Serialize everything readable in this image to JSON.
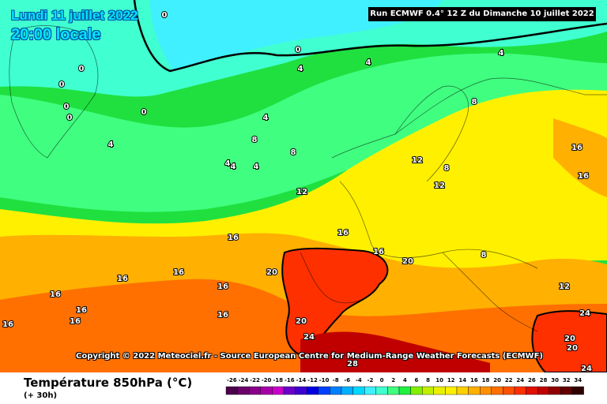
{
  "header": {
    "date_line": "Lundi 11 juillet 2022",
    "time_line": "20:00 locale",
    "run_info": "Run ECMWF 0.4° 12 Z du Dimanche 10 juillet 2022"
  },
  "credit": "Copyright © 2022 Meteociel.fr - Source European Centre for Medium-Range Weather Forecasts (ECMWF)",
  "footer": {
    "parameter": "Température 850hPa (°C)",
    "lead_time": "(+ 30h)"
  },
  "color_scale": {
    "labels": [
      "-26",
      "-24",
      "-22",
      "-20",
      "-18",
      "-16",
      "-14",
      "-12",
      "-10",
      "-8",
      "-6",
      "-4",
      "-2",
      "0",
      "2",
      "4",
      "6",
      "8",
      "10",
      "12",
      "14",
      "16",
      "18",
      "20",
      "22",
      "24",
      "26",
      "28",
      "30",
      "32",
      "34"
    ],
    "colors": [
      "#4b004b",
      "#6a006a",
      "#8a008a",
      "#a800a8",
      "#c800c8",
      "#6a00c8",
      "#3c00d0",
      "#0000e0",
      "#0040ff",
      "#0080ff",
      "#00b0ff",
      "#00d8ff",
      "#40f0ff",
      "#40ffd0",
      "#40ff80",
      "#20f040",
      "#80f000",
      "#c0f000",
      "#e8f000",
      "#fff000",
      "#ffd000",
      "#ffb000",
      "#ff9000",
      "#ff7000",
      "#ff5000",
      "#ff3000",
      "#e01000",
      "#c00000",
      "#900000",
      "#600000",
      "#300000"
    ]
  },
  "isotherm_labels": [
    {
      "text": "0",
      "kind": "cold"
    },
    {
      "text": "0",
      "kind": "cold"
    },
    {
      "text": "0",
      "kind": "cold"
    },
    {
      "text": "0",
      "kind": "cold"
    },
    {
      "text": "0",
      "kind": "cold"
    },
    {
      "text": "0",
      "kind": "cold"
    },
    {
      "text": "0",
      "kind": "cold"
    },
    {
      "text": "4",
      "kind": "cold"
    },
    {
      "text": "4",
      "kind": "cold"
    },
    {
      "text": "4",
      "kind": "cold"
    },
    {
      "text": "4",
      "kind": "cold"
    },
    {
      "text": "4",
      "kind": "cold"
    },
    {
      "text": "4",
      "kind": "cold"
    },
    {
      "text": "4",
      "kind": "cold"
    },
    {
      "text": "4",
      "kind": "cold"
    },
    {
      "text": "8",
      "kind": "mild"
    },
    {
      "text": "8",
      "kind": "mild"
    },
    {
      "text": "8",
      "kind": "mild"
    },
    {
      "text": "8",
      "kind": "mild"
    },
    {
      "text": "8",
      "kind": "mild"
    },
    {
      "text": "12",
      "kind": "mild"
    },
    {
      "text": "12",
      "kind": "mild"
    },
    {
      "text": "12",
      "kind": "mild"
    },
    {
      "text": "12",
      "kind": "mild"
    },
    {
      "text": "16",
      "kind": "warm"
    },
    {
      "text": "16",
      "kind": "warm"
    },
    {
      "text": "16",
      "kind": "warm"
    },
    {
      "text": "16",
      "kind": "warm"
    },
    {
      "text": "16",
      "kind": "warm"
    },
    {
      "text": "16",
      "kind": "warm"
    },
    {
      "text": "16",
      "kind": "warm"
    },
    {
      "text": "16",
      "kind": "warm"
    },
    {
      "text": "16",
      "kind": "warm"
    },
    {
      "text": "16",
      "kind": "warm"
    },
    {
      "text": "16",
      "kind": "warm"
    },
    {
      "text": "16",
      "kind": "warm"
    },
    {
      "text": "16",
      "kind": "warm"
    },
    {
      "text": "20",
      "kind": "hot"
    },
    {
      "text": "20",
      "kind": "hot"
    },
    {
      "text": "20",
      "kind": "hot"
    },
    {
      "text": "20",
      "kind": "hot"
    },
    {
      "text": "20",
      "kind": "hot"
    },
    {
      "text": "24",
      "kind": "hot"
    },
    {
      "text": "24",
      "kind": "hot"
    },
    {
      "text": "24",
      "kind": "hot"
    },
    {
      "text": "28",
      "kind": "hot"
    }
  ]
}
